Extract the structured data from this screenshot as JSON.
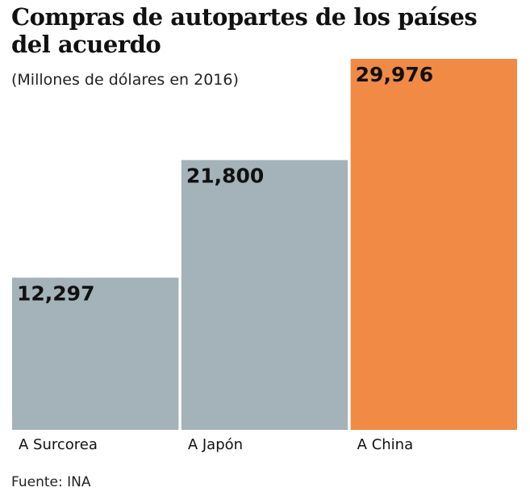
{
  "chart_data": {
    "type": "bar",
    "title": "Compras de autopartes de los países del acuerdo",
    "subtitle": "(Millones de dólares en 2016)",
    "source": "Fuente: INA",
    "categories": [
      "A Surcorea",
      "A Japón",
      "A China"
    ],
    "values": [
      12297,
      21800,
      29976
    ],
    "value_labels": [
      "12,297",
      "21,800",
      "29,976"
    ],
    "colors": [
      "#a4b2b9",
      "#a4b2b9",
      "#f08a45"
    ]
  }
}
